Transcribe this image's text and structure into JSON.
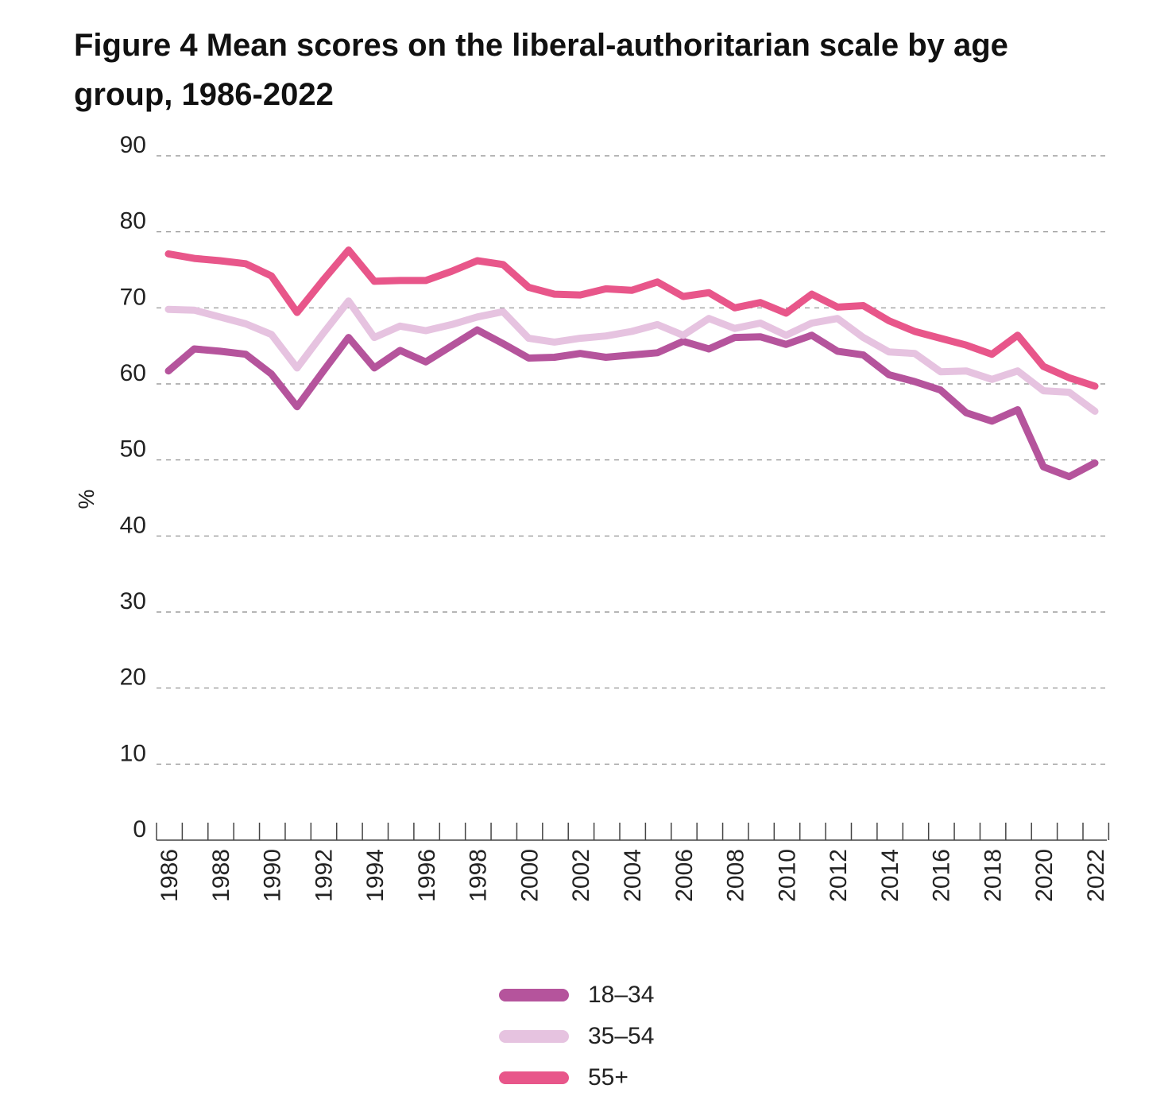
{
  "title": "Figure 4 Mean scores on the liberal-authoritarian scale by age group, 1986-2022",
  "chart_data": {
    "type": "line",
    "title": "Figure 4 Mean scores on the liberal-authoritarian scale by age group, 1986-2022",
    "xlabel": "",
    "ylabel": "%",
    "ylim": [
      0,
      90
    ],
    "yticks": [
      "0",
      "10",
      "20",
      "30",
      "40",
      "50",
      "60",
      "70",
      "80",
      "90"
    ],
    "xticks": [
      "1986",
      "1988",
      "1990",
      "1992",
      "1994",
      "1996",
      "1998",
      "2000",
      "2002",
      "2004",
      "2006",
      "2008",
      "2010",
      "2012",
      "2014",
      "2016",
      "2018",
      "2020",
      "2022"
    ],
    "grid": "horizontal dashed",
    "legend": "bottom-center",
    "x": [
      1986,
      1987,
      1988,
      1989,
      1990,
      1991,
      1992,
      1993,
      1994,
      1995,
      1996,
      1997,
      1998,
      1999,
      2000,
      2001,
      2002,
      2003,
      2004,
      2005,
      2006,
      2007,
      2008,
      2009,
      2010,
      2011,
      2012,
      2013,
      2014,
      2015,
      2016,
      2017,
      2018,
      2019,
      2020,
      2021,
      2022
    ],
    "series": [
      {
        "name": "18–34",
        "color": "#b5549c",
        "values": [
          61.7,
          64.6,
          64.3,
          63.9,
          61.3,
          57.0,
          61.6,
          66.1,
          62.1,
          64.4,
          62.9,
          65.0,
          67.1,
          65.3,
          63.4,
          63.5,
          64.0,
          63.5,
          63.8,
          64.1,
          65.6,
          64.6,
          66.1,
          66.2,
          65.2,
          66.4,
          64.3,
          63.8,
          61.2,
          60.3,
          59.2,
          56.2,
          55.1,
          56.6,
          49.1,
          47.8,
          49.6
        ]
      },
      {
        "name": "35–54",
        "color": "#e6c3e0",
        "values": [
          69.8,
          69.7,
          68.8,
          67.9,
          66.5,
          62.1,
          66.6,
          70.9,
          66.1,
          67.6,
          67.0,
          67.8,
          68.8,
          69.5,
          66.0,
          65.5,
          66.0,
          66.3,
          66.9,
          67.8,
          66.4,
          68.6,
          67.3,
          68.0,
          66.4,
          68.0,
          68.6,
          66.1,
          64.2,
          64.0,
          61.6,
          61.7,
          60.6,
          61.7,
          59.1,
          58.9,
          56.4
        ]
      },
      {
        "name": "55+",
        "color": "#e8568a",
        "values": [
          77.1,
          76.5,
          76.2,
          75.8,
          74.2,
          69.4,
          73.6,
          77.6,
          73.5,
          73.6,
          73.6,
          74.8,
          76.2,
          75.7,
          72.7,
          71.8,
          71.7,
          72.5,
          72.3,
          73.4,
          71.5,
          72.0,
          70.0,
          70.7,
          69.3,
          71.8,
          70.1,
          70.3,
          68.3,
          66.9,
          66.0,
          65.1,
          63.9,
          66.4,
          62.3,
          60.8,
          59.7
        ]
      }
    ]
  }
}
